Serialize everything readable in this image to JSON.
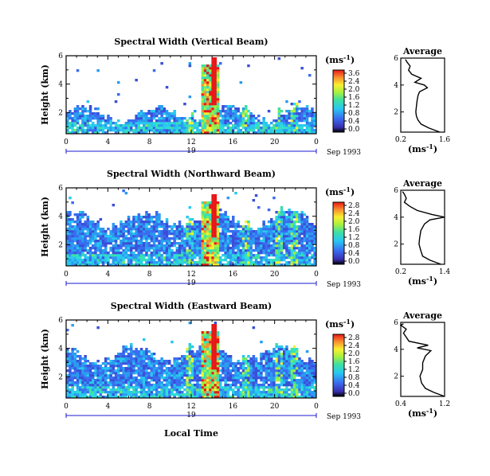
{
  "figure": {
    "xlabel": "Local Time",
    "day_label": "19",
    "month_label": "Sep 1993",
    "ylabel": "Height (km)",
    "units_label": "(ms",
    "units_sup": "-1",
    "profile_title": "Average",
    "profile_xlabel": "(ms",
    "profile_xlabel_sup": "-1",
    "profile_xlabel_close": ")"
  },
  "chart_data": [
    {
      "type": "heatmap",
      "title": "Spectral Width (Vertical Beam)",
      "xlabel": "Local Time",
      "ylabel": "Height (km)",
      "x_ticks": [
        "0",
        "4",
        "8",
        "12",
        "16",
        "20",
        "0"
      ],
      "xlim": [
        0,
        24
      ],
      "ylim": [
        0.5,
        6
      ],
      "y_ticks": [
        "2",
        "4",
        "6"
      ],
      "colorbar": {
        "label": "(ms-1)",
        "ticks": [
          "3.6",
          "2.4",
          "2.0",
          "1.6",
          "1.2",
          "0.8",
          "0.4",
          "0.0"
        ]
      },
      "extent_km": 1.9,
      "burst_km": 5.4,
      "burst_hour": 13.8,
      "profile": {
        "title": "Average",
        "xlim": [
          0.2,
          1.6
        ],
        "x_ticks": [
          "0.2",
          "1.6"
        ],
        "y_ticks": [
          "2",
          "4",
          "6"
        ],
        "height_km": [
          0.5,
          0.8,
          1.1,
          1.4,
          1.7,
          2.0,
          2.4,
          2.8,
          3.2,
          3.5,
          3.8,
          4.0,
          4.2,
          4.5,
          4.8,
          5.1,
          5.4,
          5.7,
          5.9
        ],
        "width_ms": [
          1.45,
          1.1,
          0.85,
          0.75,
          0.7,
          0.68,
          0.7,
          0.72,
          0.75,
          0.8,
          1.05,
          0.95,
          0.65,
          0.85,
          0.55,
          0.45,
          0.5,
          0.4,
          0.35
        ]
      }
    },
    {
      "type": "heatmap",
      "title": "Spectral Width (Northward Beam)",
      "xlabel": "Local Time",
      "ylabel": "Height (km)",
      "x_ticks": [
        "0",
        "4",
        "8",
        "12",
        "16",
        "20",
        "0"
      ],
      "xlim": [
        0,
        24
      ],
      "ylim": [
        0.5,
        6
      ],
      "y_ticks": [
        "2",
        "4",
        "6"
      ],
      "colorbar": {
        "label": "(ms-1)",
        "ticks": [
          "2.8",
          "2.4",
          "2.0",
          "1.6",
          "1.2",
          "0.8",
          "0.4",
          "0.0"
        ]
      },
      "extent_km": 3.8,
      "burst_km": 5.0,
      "burst_hour": 13.8,
      "profile": {
        "title": "Average",
        "xlim": [
          0.2,
          1.4
        ],
        "x_ticks": [
          "0.2",
          "1.4"
        ],
        "y_ticks": [
          "2",
          "4",
          "6"
        ],
        "height_km": [
          0.5,
          0.8,
          1.1,
          1.5,
          2.0,
          2.5,
          3.0,
          3.5,
          3.8,
          4.0,
          4.2,
          4.5,
          4.8,
          5.1,
          5.4,
          5.7,
          5.9
        ],
        "width_ms": [
          1.3,
          1.0,
          0.8,
          0.75,
          0.7,
          0.72,
          0.75,
          0.85,
          1.0,
          1.4,
          1.05,
          0.65,
          0.45,
          0.3,
          0.35,
          0.3,
          0.25
        ]
      }
    },
    {
      "type": "heatmap",
      "title": "Spectral Width (Eastward Beam)",
      "xlabel": "Local Time",
      "ylabel": "Height (km)",
      "x_ticks": [
        "0",
        "4",
        "8",
        "12",
        "16",
        "20",
        "0"
      ],
      "xlim": [
        0,
        24
      ],
      "ylim": [
        0.5,
        6
      ],
      "y_ticks": [
        "2",
        "4",
        "6"
      ],
      "colorbar": {
        "label": "(ms-1)",
        "ticks": [
          "2.8",
          "2.4",
          "2.0",
          "1.6",
          "1.2",
          "0.8",
          "0.4",
          "0.0"
        ]
      },
      "extent_km": 3.6,
      "burst_km": 5.2,
      "burst_hour": 13.8,
      "profile": {
        "title": "Average",
        "xlim": [
          0.4,
          1.2
        ],
        "x_ticks": [
          "0.4",
          "1.2"
        ],
        "y_ticks": [
          "2",
          "4",
          "6"
        ],
        "height_km": [
          0.5,
          0.8,
          1.1,
          1.5,
          2.0,
          2.5,
          3.0,
          3.5,
          3.9,
          4.1,
          4.3,
          4.6,
          4.9,
          5.2,
          5.5,
          5.8,
          5.9
        ],
        "width_ms": [
          1.2,
          1.0,
          0.85,
          0.78,
          0.75,
          0.8,
          0.8,
          0.85,
          0.95,
          0.7,
          0.9,
          0.55,
          0.5,
          0.45,
          0.5,
          0.4,
          0.45
        ]
      }
    }
  ]
}
